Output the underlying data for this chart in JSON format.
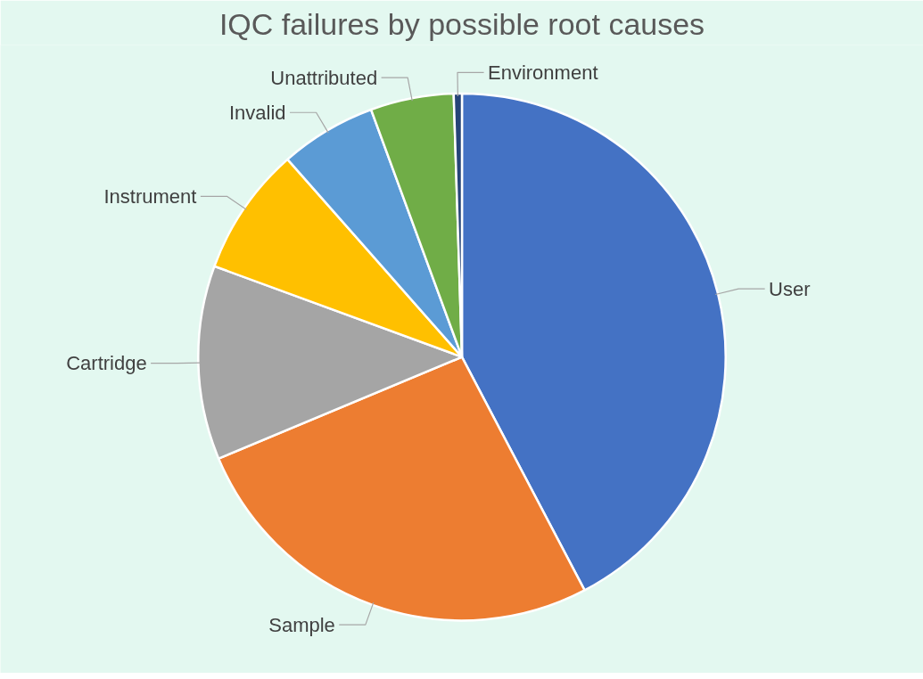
{
  "chart_data": {
    "type": "pie",
    "title": "IQC failures by possible root causes",
    "categories": [
      "User",
      "Sample",
      "Cartridge",
      "Instrument",
      "Invalid",
      "Unattributed",
      "Environment"
    ],
    "values": [
      42.3,
      26.4,
      11.9,
      7.9,
      5.9,
      5.1,
      0.5
    ],
    "colors": [
      "#4472c4",
      "#ed7d31",
      "#a5a5a5",
      "#ffc000",
      "#5b9bd5",
      "#70ad47",
      "#264478"
    ],
    "legend": false
  }
}
